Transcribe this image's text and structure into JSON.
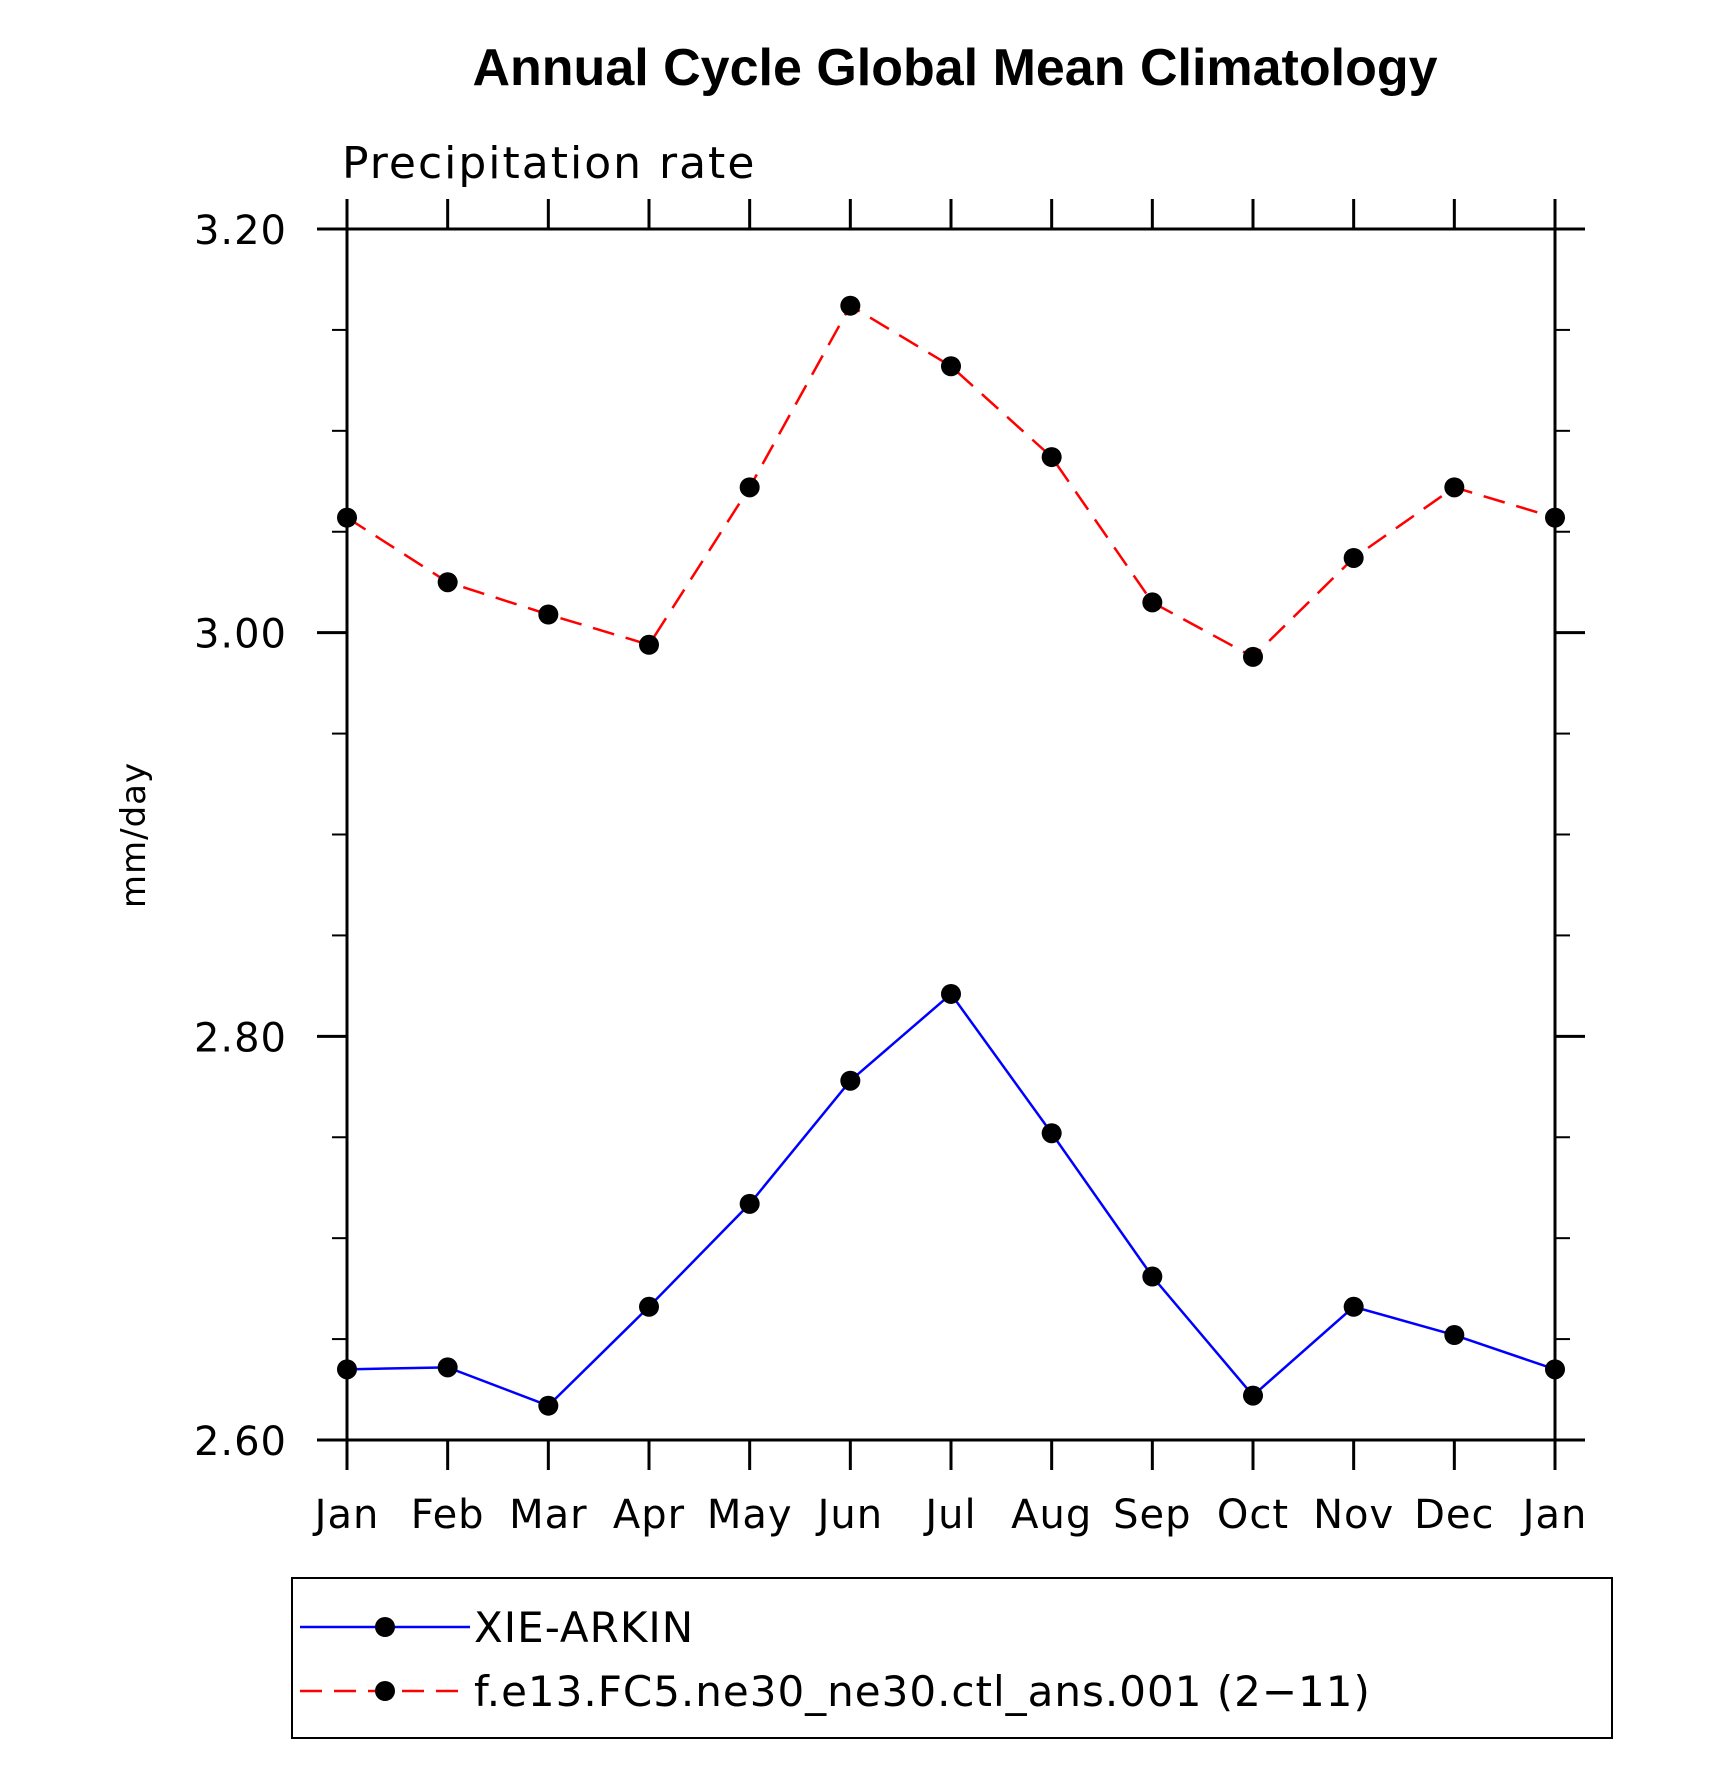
{
  "chart_data": {
    "type": "line",
    "title": "Annual Cycle Global Mean Climatology",
    "subtitle": "Precipitation rate",
    "xlabel": "",
    "ylabel": "mm/day",
    "categories": [
      "Jan",
      "Feb",
      "Mar",
      "Apr",
      "May",
      "Jun",
      "Jul",
      "Aug",
      "Sep",
      "Oct",
      "Nov",
      "Dec",
      "Jan"
    ],
    "ylim": [
      2.6,
      3.2
    ],
    "yticks": [
      "2.60",
      "2.80",
      "3.00",
      "3.20"
    ],
    "ytick_values": [
      2.6,
      2.8,
      3.0,
      3.2
    ],
    "yminor_step": 0.05,
    "grid": false,
    "legend_placement": "bottom",
    "series": [
      {
        "name": "XIE-ARKIN",
        "color": "#0000ff",
        "line_style": "solid",
        "marker": "filled-circle",
        "values": [
          2.635,
          2.636,
          2.617,
          2.666,
          2.717,
          2.778,
          2.821,
          2.752,
          2.681,
          2.622,
          2.666,
          2.652,
          2.635
        ]
      },
      {
        "name": "f.e13.FC5.ne30_ne30.ctl_ans.001 (2−11)",
        "color": "#ff0000",
        "line_style": "dashed",
        "marker": "filled-circle",
        "values": [
          3.057,
          3.025,
          3.009,
          2.994,
          3.072,
          3.162,
          3.132,
          3.087,
          3.015,
          2.988,
          3.037,
          3.072,
          3.057
        ]
      }
    ]
  }
}
